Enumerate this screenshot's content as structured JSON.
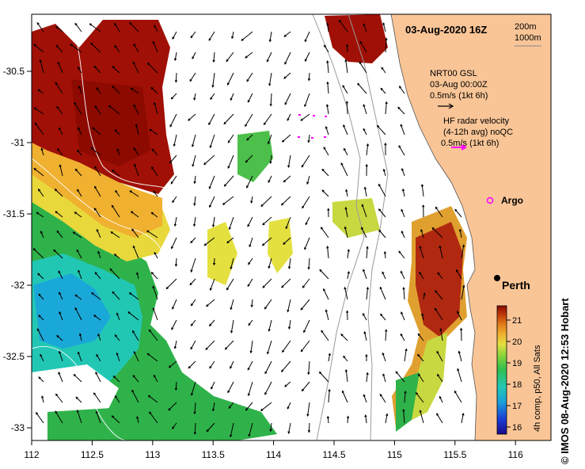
{
  "map": {
    "title": "03-Aug-2020 16Z",
    "scale_labels": [
      "200m",
      "1000m"
    ],
    "nrt": {
      "line1": "NRT00 GSL",
      "line2": "03-Aug 00:00Z",
      "line3": "0.5m/s (1kt 6h)"
    },
    "hf": {
      "line1": "HF radar velocity",
      "line2": "(4-12h avg) noQC",
      "line3": "0.5m/s (1kt 6h)"
    },
    "argo_label": "Argo",
    "city_label": "Perth",
    "lon_ticks": [
      "112",
      "112.5",
      "113",
      "113.5",
      "114",
      "114.5",
      "115",
      "115.5",
      "116"
    ],
    "lat_ticks": [
      "-30.5",
      "-31",
      "-31.5",
      "-32",
      "-32.5",
      "-33"
    ],
    "colorbar": {
      "ticks": [
        "21",
        "20",
        "19",
        "18",
        "17",
        "16"
      ],
      "label": "4h comp, p50, All Sats"
    },
    "credit": "© IMOS 08-Aug-2020 12:53 Hobart",
    "colors": {
      "land": "#f9c597",
      "hf_arrow": "#ff00ff",
      "argo": "#ff00ff"
    }
  }
}
